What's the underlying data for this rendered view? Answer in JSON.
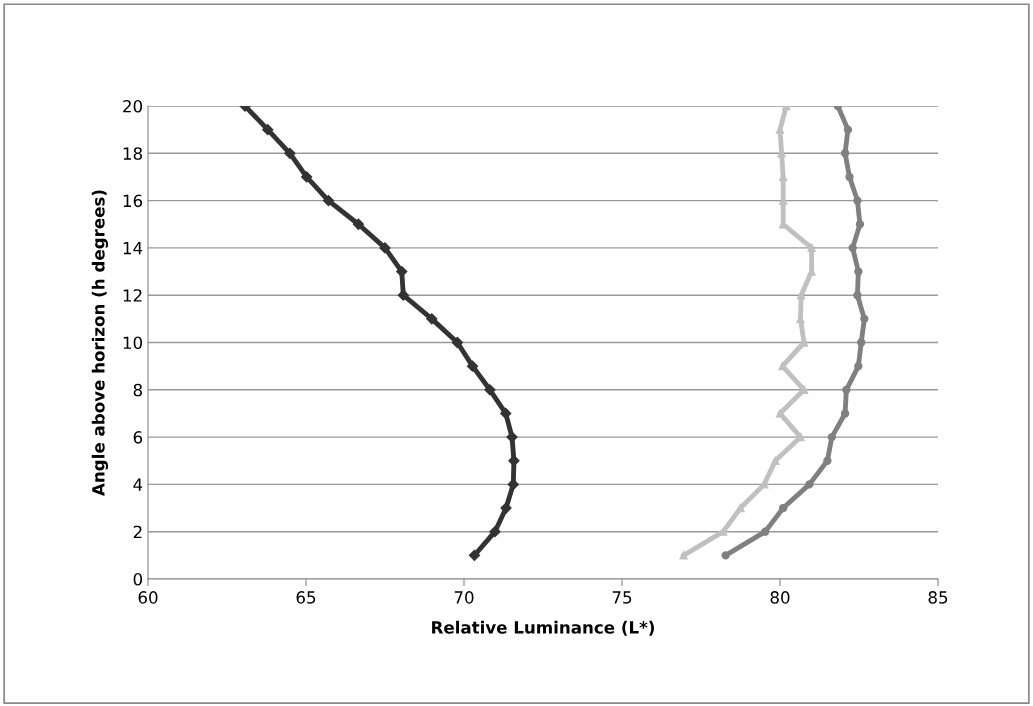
{
  "chart_data": {
    "type": "line",
    "xlabel": "Relative Luminance (L*)",
    "ylabel": "Angle above horizon (h degrees)",
    "xlim": [
      60,
      85
    ],
    "xticks": [
      60,
      65,
      70,
      75,
      80,
      85
    ],
    "ylim": [
      0,
      20
    ],
    "yticks": [
      0,
      2,
      4,
      6,
      8,
      10,
      12,
      14,
      16,
      18,
      20
    ],
    "grid": "y",
    "legend": false,
    "line_style": "solid",
    "series": [
      {
        "color": "#333333",
        "marker": "diamond",
        "x": [
          70.33,
          70.98,
          71.33,
          71.56,
          71.58,
          71.52,
          71.32,
          70.82,
          70.27,
          69.79,
          68.98,
          68.08,
          68.03,
          67.5,
          66.66,
          65.71,
          65.02,
          64.49,
          63.79,
          63.07
        ],
        "values": [
          1,
          2,
          3,
          4,
          5,
          6,
          7,
          8,
          9,
          10,
          11,
          12,
          13,
          14,
          15,
          16,
          17,
          18,
          19,
          20
        ]
      },
      {
        "color": "#c0c0c0",
        "marker": "triangle",
        "x": [
          76.95,
          78.2,
          78.75,
          79.5,
          79.85,
          80.65,
          80.0,
          80.76,
          80.08,
          80.76,
          80.65,
          80.67,
          81.0,
          81.0,
          80.1,
          80.1,
          80.1,
          80.05,
          80.0,
          80.2
        ],
        "values": [
          1,
          2,
          3,
          4,
          5,
          6,
          7,
          8,
          9,
          10,
          11,
          12,
          13,
          14,
          15,
          16,
          17,
          18,
          19,
          20
        ]
      },
      {
        "color": "#808080",
        "marker": "circle",
        "x": [
          78.28,
          79.53,
          80.1,
          80.93,
          81.5,
          81.64,
          82.06,
          82.1,
          82.48,
          82.57,
          82.67,
          82.45,
          82.48,
          82.3,
          82.53,
          82.45,
          82.2,
          82.06,
          82.15,
          81.83
        ],
        "values": [
          1,
          2,
          3,
          4,
          5,
          6,
          7,
          8,
          9,
          10,
          11,
          12,
          13,
          14,
          15,
          16,
          17,
          18,
          19,
          20
        ]
      }
    ]
  }
}
